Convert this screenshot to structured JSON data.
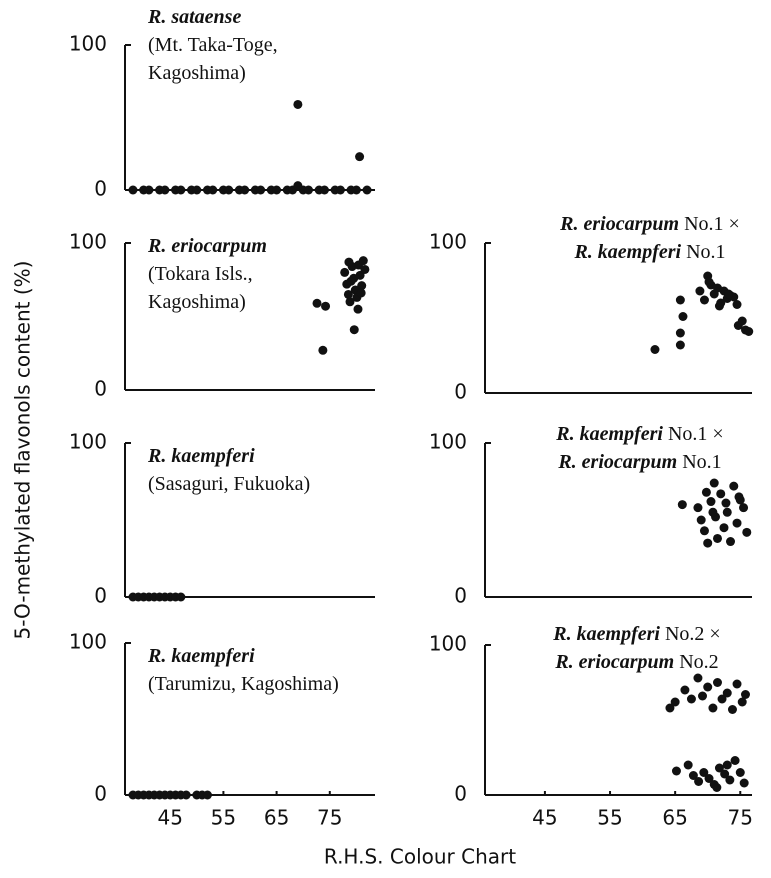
{
  "figure": {
    "ylabel": "5-O-methylated flavonols content (%)",
    "xlabel": "R.H.S. Colour Chart"
  },
  "chart_data": [
    {
      "type": "scatter",
      "color": "#111111",
      "title_lines": [
        [
          {
            "text": "R. sataense",
            "italic": true
          }
        ],
        [
          {
            "text": "(Mt. Taka-Toge,"
          }
        ],
        [
          {
            "text": "Kagoshima)"
          }
        ]
      ],
      "x": [
        38,
        40,
        41,
        43,
        44,
        46,
        47,
        49,
        50,
        52,
        53,
        55,
        56,
        58,
        59,
        61,
        62,
        64,
        65,
        67,
        68,
        70,
        71,
        73,
        74,
        76,
        77,
        79,
        80,
        82,
        69,
        69,
        80.6
      ],
      "values": [
        0,
        0,
        0,
        0,
        0,
        0,
        0,
        0,
        0,
        0,
        0,
        0,
        0,
        0,
        0,
        0,
        0,
        0,
        0,
        0,
        0,
        0,
        0,
        0,
        0,
        0,
        0,
        0,
        0,
        0,
        3,
        59,
        23
      ],
      "xlim": [
        36.5,
        83.5
      ],
      "ylim": [
        0,
        100
      ],
      "yticks": [
        0,
        100
      ]
    },
    {
      "type": "scatter",
      "color": "#111111",
      "title_lines": [
        [
          {
            "text": "R. eriocarpum",
            "italic": true
          }
        ],
        [
          {
            "text": "(Tokara Isls.,"
          }
        ],
        [
          {
            "text": "Kagoshima)"
          }
        ]
      ],
      "x": [
        72.6,
        74.2,
        73.7,
        77.8,
        78.2,
        78.5,
        78.8,
        79.2,
        79.5,
        79.8,
        80.1,
        80.4,
        80.7,
        81,
        81.3,
        81.6,
        79.6,
        80.3,
        78.6,
        79,
        80.9
      ],
      "values": [
        59,
        57,
        27,
        80,
        72,
        65,
        60,
        84,
        76,
        68,
        63,
        85,
        78,
        71,
        88,
        82,
        41,
        55,
        87,
        74,
        66
      ],
      "xlim": [
        36.5,
        83.5
      ],
      "ylim": [
        0,
        100
      ],
      "yticks": [
        0,
        100
      ]
    },
    {
      "type": "scatter",
      "color": "#111111",
      "title_lines": [
        [
          {
            "text": "R. kaempferi",
            "italic": true
          }
        ],
        [
          {
            "text": "(Sasaguri, Fukuoka)"
          }
        ]
      ],
      "x": [
        38,
        39,
        40,
        41,
        42,
        43,
        44,
        45,
        46,
        47
      ],
      "values": [
        0,
        0,
        0,
        0,
        0,
        0,
        0,
        0,
        0,
        0
      ],
      "xlim": [
        36.5,
        83.5
      ],
      "ylim": [
        0,
        100
      ],
      "yticks": [
        0,
        100
      ]
    },
    {
      "type": "scatter",
      "color": "#111111",
      "title_lines": [
        [
          {
            "text": "R. kaempferi",
            "italic": true
          }
        ],
        [
          {
            "text": "(Tarumizu, Kagoshima)"
          }
        ]
      ],
      "x": [
        38,
        39,
        40,
        41,
        42,
        43,
        44,
        45,
        46,
        47,
        48,
        50,
        51,
        52
      ],
      "values": [
        0,
        0,
        0,
        0,
        0,
        0,
        0,
        0,
        0,
        0,
        0,
        0,
        0,
        0
      ],
      "xlim": [
        36.5,
        83.5
      ],
      "ylim": [
        0,
        100
      ],
      "yticks": [
        0,
        100
      ],
      "xticks": [
        45,
        55,
        65,
        75
      ]
    },
    {
      "type": "scatter",
      "color": "#111111",
      "title_lines": [
        [
          {
            "text": "R. eriocarpum",
            "italic": true
          },
          {
            "text": " No.1 ×"
          }
        ],
        [
          {
            "text": "R. kaempferi",
            "italic": true
          },
          {
            "text": " No.1"
          }
        ]
      ],
      "x": [
        61.9,
        65.8,
        65.8,
        66.2,
        65.8,
        68.8,
        69.5,
        70,
        70.5,
        71,
        71.5,
        72,
        72.5,
        73,
        73.5,
        74,
        74.5,
        74.7,
        75.3,
        75.8,
        76.3,
        70.2,
        71.8,
        73.2
      ],
      "values": [
        29,
        32,
        40,
        51,
        62,
        68,
        62,
        78,
        72,
        66,
        70,
        60,
        68,
        63,
        65,
        64,
        59,
        45,
        48,
        42,
        41,
        74,
        58,
        66
      ],
      "xlim": [
        35.8,
        76.8
      ],
      "ylim": [
        0,
        100
      ],
      "yticks": [
        0,
        100
      ]
    },
    {
      "type": "scatter",
      "color": "#111111",
      "title_lines": [
        [
          {
            "text": "R. kaempferi",
            "italic": true
          },
          {
            "text": " No.1 ×"
          }
        ],
        [
          {
            "text": "R. eriocarpum",
            "italic": true
          },
          {
            "text": " No.1"
          }
        ]
      ],
      "x": [
        66.1,
        68.5,
        69,
        69.5,
        70,
        70.5,
        71,
        71.2,
        71.5,
        72,
        72.5,
        73,
        73.5,
        74,
        74.5,
        75,
        75.5,
        76,
        69.8,
        72.8,
        74.8,
        70.8
      ],
      "values": [
        60,
        58,
        50,
        43,
        35,
        62,
        74,
        52,
        38,
        67,
        45,
        55,
        36,
        72,
        48,
        63,
        58,
        42,
        68,
        61,
        65,
        55
      ],
      "xlim": [
        35.8,
        76.8
      ],
      "ylim": [
        0,
        100
      ],
      "yticks": [
        0,
        100
      ]
    },
    {
      "type": "scatter",
      "color": "#111111",
      "title_lines": [
        [
          {
            "text": "R. kaempferi",
            "italic": true
          },
          {
            "text": " No.2 ×"
          }
        ],
        [
          {
            "text": "R. eriocarpum",
            "italic": true
          },
          {
            "text": " No.2"
          }
        ]
      ],
      "x": [
        64.2,
        65,
        66.5,
        67.5,
        68.5,
        69.2,
        70,
        70.8,
        71.5,
        72.2,
        73,
        73.8,
        74.5,
        75.3,
        75.8,
        65.2,
        67,
        67.8,
        68.6,
        69.4,
        70.2,
        71,
        71.8,
        72.6,
        73.4,
        74.2,
        75,
        75.6,
        73,
        71.4
      ],
      "values": [
        58,
        62,
        70,
        64,
        78,
        66,
        72,
        58,
        75,
        64,
        68,
        57,
        74,
        62,
        67,
        16,
        20,
        13,
        9,
        15,
        11,
        7,
        18,
        14,
        10,
        23,
        15,
        8,
        20,
        5
      ],
      "xlim": [
        35.8,
        76.8
      ],
      "ylim": [
        0,
        100
      ],
      "yticks": [
        0,
        100
      ],
      "xticks": [
        45,
        55,
        65,
        75
      ]
    }
  ]
}
